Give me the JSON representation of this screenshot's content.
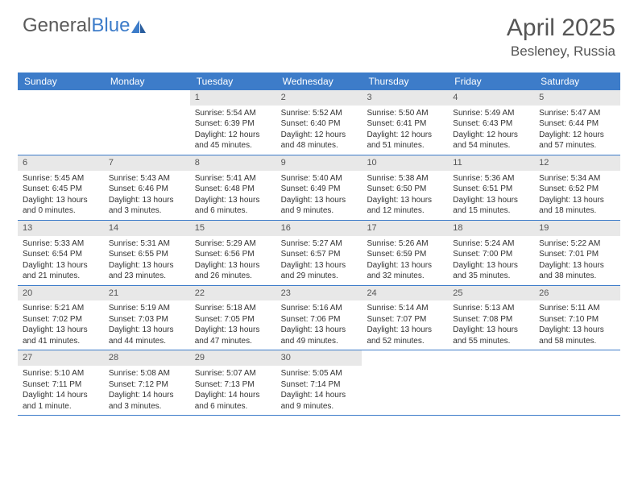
{
  "brand": {
    "part1": "General",
    "part2": "Blue"
  },
  "title": "April 2025",
  "location": "Besleney, Russia",
  "header_bg": "#3d7cc9",
  "daynum_bg": "#e8e8e8",
  "text_color": "#333333",
  "title_color": "#555555",
  "days_of_week": [
    "Sunday",
    "Monday",
    "Tuesday",
    "Wednesday",
    "Thursday",
    "Friday",
    "Saturday"
  ],
  "weeks": [
    [
      null,
      null,
      {
        "n": "1",
        "sr": "5:54 AM",
        "ss": "6:39 PM",
        "dl": "12 hours and 45 minutes."
      },
      {
        "n": "2",
        "sr": "5:52 AM",
        "ss": "6:40 PM",
        "dl": "12 hours and 48 minutes."
      },
      {
        "n": "3",
        "sr": "5:50 AM",
        "ss": "6:41 PM",
        "dl": "12 hours and 51 minutes."
      },
      {
        "n": "4",
        "sr": "5:49 AM",
        "ss": "6:43 PM",
        "dl": "12 hours and 54 minutes."
      },
      {
        "n": "5",
        "sr": "5:47 AM",
        "ss": "6:44 PM",
        "dl": "12 hours and 57 minutes."
      }
    ],
    [
      {
        "n": "6",
        "sr": "5:45 AM",
        "ss": "6:45 PM",
        "dl": "13 hours and 0 minutes."
      },
      {
        "n": "7",
        "sr": "5:43 AM",
        "ss": "6:46 PM",
        "dl": "13 hours and 3 minutes."
      },
      {
        "n": "8",
        "sr": "5:41 AM",
        "ss": "6:48 PM",
        "dl": "13 hours and 6 minutes."
      },
      {
        "n": "9",
        "sr": "5:40 AM",
        "ss": "6:49 PM",
        "dl": "13 hours and 9 minutes."
      },
      {
        "n": "10",
        "sr": "5:38 AM",
        "ss": "6:50 PM",
        "dl": "13 hours and 12 minutes."
      },
      {
        "n": "11",
        "sr": "5:36 AM",
        "ss": "6:51 PM",
        "dl": "13 hours and 15 minutes."
      },
      {
        "n": "12",
        "sr": "5:34 AM",
        "ss": "6:52 PM",
        "dl": "13 hours and 18 minutes."
      }
    ],
    [
      {
        "n": "13",
        "sr": "5:33 AM",
        "ss": "6:54 PM",
        "dl": "13 hours and 21 minutes."
      },
      {
        "n": "14",
        "sr": "5:31 AM",
        "ss": "6:55 PM",
        "dl": "13 hours and 23 minutes."
      },
      {
        "n": "15",
        "sr": "5:29 AM",
        "ss": "6:56 PM",
        "dl": "13 hours and 26 minutes."
      },
      {
        "n": "16",
        "sr": "5:27 AM",
        "ss": "6:57 PM",
        "dl": "13 hours and 29 minutes."
      },
      {
        "n": "17",
        "sr": "5:26 AM",
        "ss": "6:59 PM",
        "dl": "13 hours and 32 minutes."
      },
      {
        "n": "18",
        "sr": "5:24 AM",
        "ss": "7:00 PM",
        "dl": "13 hours and 35 minutes."
      },
      {
        "n": "19",
        "sr": "5:22 AM",
        "ss": "7:01 PM",
        "dl": "13 hours and 38 minutes."
      }
    ],
    [
      {
        "n": "20",
        "sr": "5:21 AM",
        "ss": "7:02 PM",
        "dl": "13 hours and 41 minutes."
      },
      {
        "n": "21",
        "sr": "5:19 AM",
        "ss": "7:03 PM",
        "dl": "13 hours and 44 minutes."
      },
      {
        "n": "22",
        "sr": "5:18 AM",
        "ss": "7:05 PM",
        "dl": "13 hours and 47 minutes."
      },
      {
        "n": "23",
        "sr": "5:16 AM",
        "ss": "7:06 PM",
        "dl": "13 hours and 49 minutes."
      },
      {
        "n": "24",
        "sr": "5:14 AM",
        "ss": "7:07 PM",
        "dl": "13 hours and 52 minutes."
      },
      {
        "n": "25",
        "sr": "5:13 AM",
        "ss": "7:08 PM",
        "dl": "13 hours and 55 minutes."
      },
      {
        "n": "26",
        "sr": "5:11 AM",
        "ss": "7:10 PM",
        "dl": "13 hours and 58 minutes."
      }
    ],
    [
      {
        "n": "27",
        "sr": "5:10 AM",
        "ss": "7:11 PM",
        "dl": "14 hours and 1 minute."
      },
      {
        "n": "28",
        "sr": "5:08 AM",
        "ss": "7:12 PM",
        "dl": "14 hours and 3 minutes."
      },
      {
        "n": "29",
        "sr": "5:07 AM",
        "ss": "7:13 PM",
        "dl": "14 hours and 6 minutes."
      },
      {
        "n": "30",
        "sr": "5:05 AM",
        "ss": "7:14 PM",
        "dl": "14 hours and 9 minutes."
      },
      null,
      null,
      null
    ]
  ],
  "labels": {
    "sunrise": "Sunrise: ",
    "sunset": "Sunset: ",
    "daylight": "Daylight: "
  }
}
